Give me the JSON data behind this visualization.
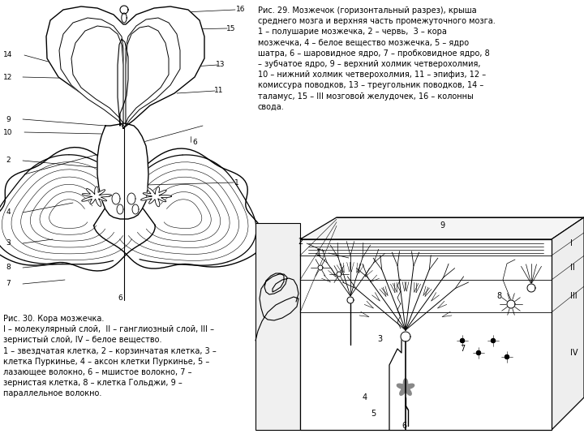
{
  "bg_color": "#ffffff",
  "title_text": "Рис. 29. Мозжечок (горизонтальный разрез), крыша\nсреднего мозга и верхняя часть промежуточного мозга.\n1 – полушарие мозжечка, 2 – червь,  3 – кора\nмозжечка, 4 – белое вещество мозжечка, 5 – ядро\nшатра, 6 – шаровидное ядро, 7 – пробковидное ядро, 8\n– зубчатое ядро, 9 – верхний холмик четверохолмия,\n10 – нижний холмик четверохолмия, 11 – эпифиз, 12 –\nкомиссура поводков, 13 – треугольник поводков, 14 –\nталамус, 15 – III мозговой желудочек, 16 – колонны\nсвода.",
  "caption_text": "Рис. 30. Кора мозжечка.\nI – молекулярный слой,  II – ганглиозный слой, III –\nзернистый слой, IV – белое вещество.\n1 – звездчатая клетка, 2 – корзинчатая клетка, 3 –\nклетка Пуркинье, 4 – аксон клетки Пуркинье, 5 –\nлазающее волокно, 6 – мшистое волокно, 7 –\nзернистая клетка, 8 – клетка Гольджи, 9 –\nпараллельное волокно.",
  "font_size_title": 7.0,
  "font_size_caption": 7.0,
  "text_color": "#000000"
}
